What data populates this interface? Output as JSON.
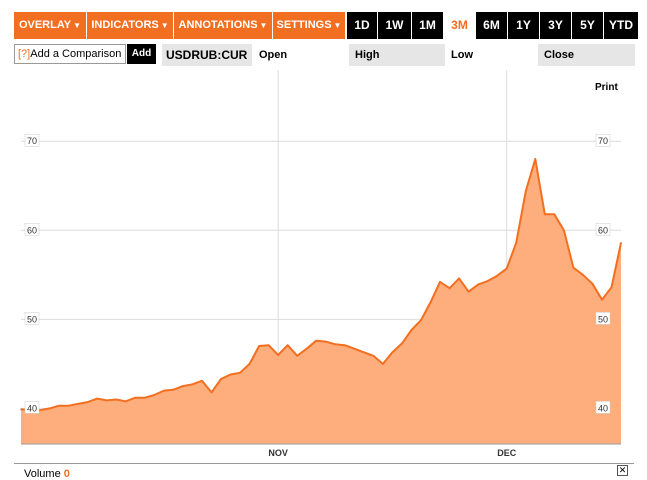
{
  "toolbar": {
    "menus": [
      {
        "label": "OVERLAY"
      },
      {
        "label": "INDICATORS"
      },
      {
        "label": "ANNOTATIONS"
      },
      {
        "label": "SETTINGS"
      }
    ],
    "ranges": [
      "1D",
      "1W",
      "1M",
      "3M",
      "6M",
      "1Y",
      "3Y",
      "5Y",
      "YTD"
    ],
    "active_range": "3M"
  },
  "comparison": {
    "help": "[?]",
    "placeholder": "Add a Comparison",
    "add_label": "Add"
  },
  "quote": {
    "ticker": "USDRUB:CUR",
    "open_label": "Open",
    "high_label": "High",
    "low_label": "Low",
    "close_label": "Close"
  },
  "print_label": "Print",
  "volume": {
    "label": "Volume",
    "value": "0"
  },
  "colors": {
    "accent": "#f26f21",
    "area": "#fdae7c"
  },
  "chart_data": {
    "type": "area",
    "ylim": [
      36,
      78
    ],
    "yticks": [
      {
        "value": 40,
        "label": "40"
      },
      {
        "value": 50,
        "label": "50"
      },
      {
        "value": 60,
        "label": "60"
      },
      {
        "value": 70,
        "label": "70"
      }
    ],
    "xticks": [
      {
        "index": 27,
        "label": "NOV"
      },
      {
        "index": 51,
        "label": "DEC"
      }
    ],
    "grid": true,
    "series": [
      {
        "values": [
          39.9,
          39.8,
          39.8,
          40.0,
          40.3,
          40.3,
          40.5,
          40.7,
          41.1,
          40.9,
          41.0,
          40.8,
          41.2,
          41.2,
          41.5,
          42.0,
          42.1,
          42.5,
          42.7,
          43.1,
          41.8,
          43.3,
          43.8,
          44.0,
          45.0,
          47.0,
          47.1,
          46.0,
          47.1,
          45.9,
          46.7,
          47.6,
          47.5,
          47.2,
          47.1,
          46.7,
          46.3,
          45.9,
          45.0,
          46.3,
          47.3,
          48.8,
          49.9,
          51.9,
          54.2,
          53.5,
          54.6,
          53.1,
          53.9,
          54.3,
          54.9,
          55.7,
          58.6,
          64.4,
          68.0,
          61.8,
          61.8,
          60.0,
          55.8,
          55.0,
          54.0,
          52.2,
          53.6,
          58.6
        ]
      }
    ]
  }
}
